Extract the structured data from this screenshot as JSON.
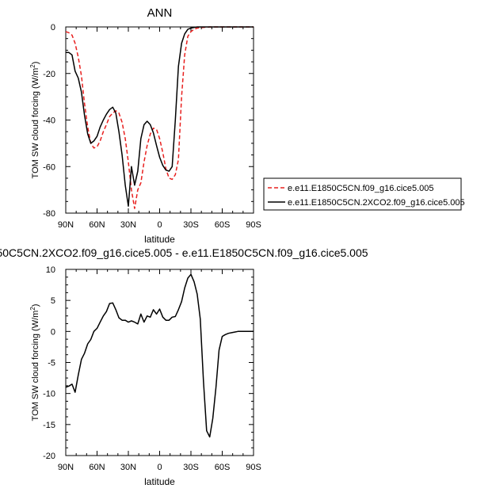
{
  "chart_data": [
    {
      "type": "line",
      "title": "ANN",
      "xlabel": "latitude",
      "ylabel": "TOM SW cloud forcing (W/m",
      "ylabel_sup": "2",
      "ylabel_close": ")",
      "xlim": [
        90,
        -90
      ],
      "ylim": [
        -80,
        0
      ],
      "xticks": [
        90,
        60,
        30,
        0,
        -30,
        -60,
        -90
      ],
      "xtick_labels": [
        "90N",
        "60N",
        "30N",
        "0",
        "30S",
        "60S",
        "90S"
      ],
      "yticks": [
        0,
        -20,
        -40,
        -60,
        -80
      ],
      "ytick_labels": [
        "0",
        "-20",
        "-40",
        "-60",
        "-80"
      ],
      "legend_position": "right",
      "series": [
        {
          "name": "e.e11.E1850C5CN.f09_g16.cice5.005",
          "color": "#e8201f",
          "dash": "dashed",
          "x": [
            90,
            87,
            84,
            81,
            78,
            75,
            72,
            69,
            66,
            63,
            60,
            57,
            54,
            51,
            48,
            45,
            42,
            39,
            36,
            33,
            30,
            27,
            24,
            21,
            18,
            15,
            12,
            9,
            6,
            3,
            0,
            -3,
            -6,
            -9,
            -12,
            -15,
            -18,
            -21,
            -24,
            -27,
            -30,
            -33,
            -36,
            -39,
            -42,
            -45,
            -48,
            -51,
            -54,
            -57,
            -60,
            -63,
            -66,
            -69,
            -72,
            -75,
            -78,
            -81,
            -84,
            -87,
            -90
          ],
          "y": [
            -2,
            -2.5,
            -3.5,
            -7,
            -13,
            -21,
            -33,
            -43,
            -50,
            -52,
            -51.5,
            -49,
            -45,
            -42,
            -38.5,
            -37,
            -36,
            -37,
            -41,
            -48,
            -58,
            -70,
            -78,
            -70,
            -67,
            -58,
            -51,
            -46,
            -43.5,
            -44,
            -48,
            -54,
            -61,
            -65,
            -65.5,
            -63.5,
            -57,
            -30,
            -12,
            -4,
            -2,
            -1,
            -0.5,
            -0.3,
            -0.2,
            -0.1,
            0,
            0,
            0,
            0,
            0,
            0,
            0,
            0,
            0,
            0,
            0,
            0,
            0,
            0,
            0
          ]
        },
        {
          "name": "e.e11.E1850C5CN.2XCO2.f09_g16.cice5.005",
          "color": "#000000",
          "dash": "solid",
          "x": [
            90,
            87,
            84,
            81,
            78,
            75,
            72,
            69,
            66,
            63,
            60,
            57,
            54,
            51,
            48,
            45,
            42,
            39,
            36,
            33,
            30,
            27,
            24,
            21,
            18,
            15,
            12,
            9,
            6,
            3,
            0,
            -3,
            -6,
            -9,
            -12,
            -15,
            -18,
            -21,
            -24,
            -27,
            -30,
            -33,
            -36,
            -39,
            -42,
            -45,
            -48,
            -51,
            -54,
            -57,
            -60,
            -63,
            -66,
            -69,
            -72,
            -75,
            -78,
            -81,
            -84,
            -87,
            -90
          ],
          "y": [
            -11,
            -11,
            -12,
            -19,
            -22,
            -28,
            -38,
            -46,
            -50,
            -49,
            -47,
            -43,
            -40,
            -37.5,
            -35.5,
            -34.5,
            -37,
            -45,
            -55,
            -68,
            -77,
            -60,
            -68,
            -62,
            -48,
            -42,
            -40.5,
            -42,
            -45.5,
            -51,
            -56,
            -59.5,
            -61.5,
            -62,
            -60,
            -40,
            -17,
            -7,
            -3,
            -1,
            -0.5,
            -0.2,
            0,
            0,
            0,
            0,
            0,
            0,
            0,
            0,
            0,
            0,
            0,
            0,
            0,
            0,
            0,
            0,
            0,
            0,
            0
          ]
        }
      ]
    },
    {
      "type": "line",
      "title": "50C5CN.2XCO2.f09_g16.cice5.005 - e.e11.E1850C5CN.f09_g16.cice5.005",
      "xlabel": "latitude",
      "ylabel": "TOM SW cloud forcing (W/m",
      "ylabel_sup": "2",
      "ylabel_close": ")",
      "xlim": [
        90,
        -90
      ],
      "ylim": [
        -20,
        10
      ],
      "xticks": [
        90,
        60,
        30,
        0,
        -30,
        -60,
        -90
      ],
      "xtick_labels": [
        "90N",
        "60N",
        "30N",
        "0",
        "30S",
        "60S",
        "90S"
      ],
      "yticks": [
        10,
        5,
        0,
        -5,
        -10,
        -15,
        -20
      ],
      "ytick_labels": [
        "10",
        "5",
        "0",
        "-5",
        "-10",
        "-15",
        "-20"
      ],
      "series": [
        {
          "color": "#000000",
          "dash": "solid",
          "x": [
            90,
            87,
            84,
            81,
            78,
            75,
            72,
            69,
            66,
            63,
            60,
            57,
            54,
            51,
            48,
            45,
            42,
            39,
            36,
            33,
            30,
            27,
            24,
            21,
            18,
            15,
            12,
            9,
            6,
            3,
            0,
            -3,
            -6,
            -9,
            -12,
            -15,
            -18,
            -21,
            -24,
            -27,
            -30,
            -33,
            -36,
            -39,
            -42,
            -45,
            -48,
            -51,
            -54,
            -57,
            -60,
            -63,
            -66,
            -69,
            -72,
            -75,
            -78,
            -81,
            -84,
            -87,
            -90
          ],
          "y": [
            -9,
            -8.8,
            -8.5,
            -9.8,
            -7,
            -4.5,
            -3.5,
            -2,
            -1.3,
            0,
            0.5,
            1.5,
            2.5,
            3.2,
            4.5,
            4.6,
            3.5,
            2.2,
            1.8,
            1.8,
            1.5,
            1.7,
            1.5,
            1.2,
            2.8,
            1.5,
            2.5,
            2.3,
            3.5,
            2.8,
            3.6,
            2.3,
            1.8,
            1.8,
            2.3,
            2.4,
            3.5,
            4.8,
            7,
            8.6,
            9.2,
            8,
            6,
            2,
            -8,
            -16,
            -17,
            -14,
            -9,
            -3,
            -0.8,
            -0.5,
            -0.3,
            -0.2,
            -0.1,
            0,
            0,
            0,
            0,
            0,
            0
          ]
        }
      ]
    }
  ]
}
